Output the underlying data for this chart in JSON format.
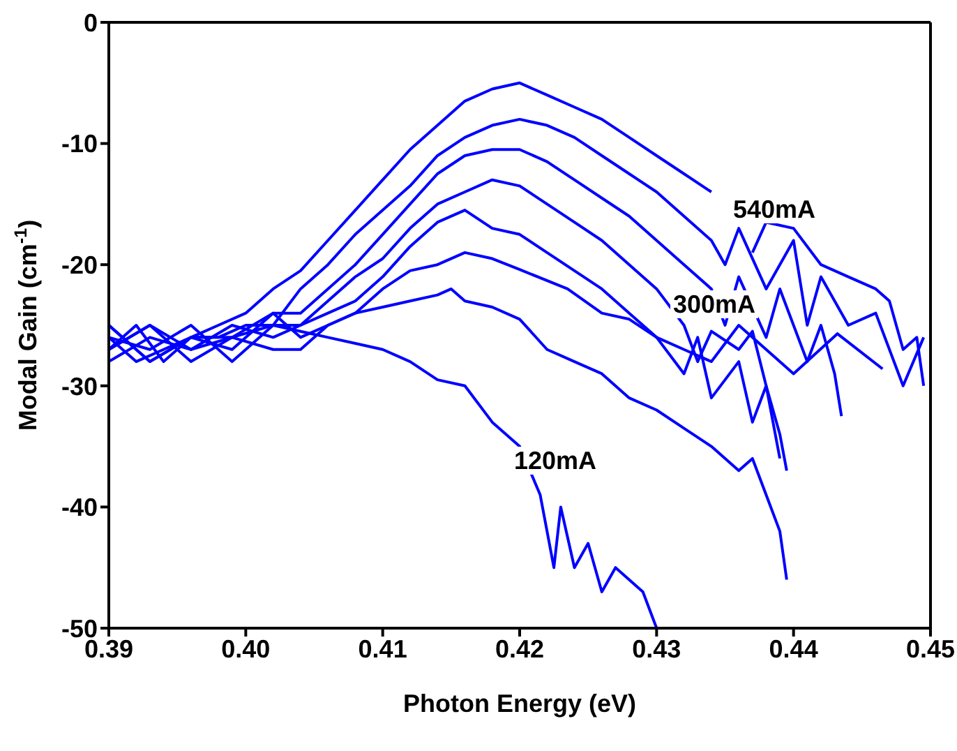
{
  "chart_data": {
    "type": "line",
    "xlabel": "Photon Energy (eV)",
    "ylabel": "Modal Gain (cm$^{-1}$)",
    "xlim": [
      0.39,
      0.45
    ],
    "xticks": [
      {
        "value": 0.39,
        "label": "0.39"
      },
      {
        "value": 0.4,
        "label": "0.40"
      },
      {
        "value": 0.41,
        "label": "0.41"
      },
      {
        "value": 0.42,
        "label": "0.42"
      },
      {
        "value": 0.43,
        "label": "0.43"
      },
      {
        "value": 0.44,
        "label": "0.44"
      },
      {
        "value": 0.45,
        "label": "0.45"
      }
    ],
    "ylim": [
      -50,
      0
    ],
    "yticks": [
      -50,
      -40,
      -30,
      -20,
      -10,
      0
    ],
    "grid": false,
    "legend": false,
    "marker": "none",
    "line_style": "solid",
    "series": [
      {
        "color": "#0000ff",
        "x": [
          0.39,
          0.392,
          0.394,
          0.396,
          0.398,
          0.4,
          0.402,
          0.404,
          0.406,
          0.408,
          0.41,
          0.412,
          0.414,
          0.416,
          0.418,
          0.42,
          0.422,
          0.424,
          0.426,
          0.428,
          0.43,
          0.432,
          0.434,
          0.436,
          0.437,
          0.438,
          0.44,
          0.442,
          0.444,
          0.446,
          0.447,
          0.448,
          0.449,
          0.4495
        ],
        "values": [
          -26,
          -28,
          -27,
          -26,
          -25,
          -24,
          -22,
          -20.5,
          -18,
          -15.5,
          -13,
          -10.5,
          -8.5,
          -6.5,
          -5.5,
          -5,
          -6,
          -7,
          -8,
          -9.5,
          -11,
          -12.5,
          -14,
          null,
          -19,
          -16.5,
          -17,
          -20,
          -21,
          -22,
          -23,
          -27,
          -26,
          -30
        ]
      },
      {
        "color": "#0000ff",
        "x": [
          0.39,
          0.393,
          0.396,
          0.399,
          0.402,
          0.404,
          0.406,
          0.408,
          0.41,
          0.412,
          0.414,
          0.416,
          0.418,
          0.42,
          0.422,
          0.424,
          0.426,
          0.428,
          0.43,
          0.432,
          0.434,
          0.435,
          0.436,
          0.438,
          0.44,
          0.441,
          0.442,
          0.444,
          0.446,
          0.448,
          0.4495
        ],
        "values": [
          -27,
          -25,
          -28,
          -26,
          -25,
          -22,
          -20,
          -17.5,
          -15.5,
          -13.5,
          -11,
          -9.5,
          -8.5,
          -8,
          -8.5,
          -9.5,
          -11,
          -12.5,
          -14,
          -16,
          -18,
          -20,
          -17,
          -22,
          -18,
          -25,
          -21,
          -25,
          -24,
          -30,
          -26
        ]
      },
      {
        "color": "#0000ff",
        "x": [
          0.39,
          0.393,
          0.396,
          0.399,
          0.402,
          0.404,
          0.406,
          0.408,
          0.41,
          0.412,
          0.414,
          0.416,
          0.418,
          0.42,
          0.422,
          0.424,
          0.426,
          0.428,
          0.43,
          0.432,
          0.434,
          0.435,
          0.436,
          0.438,
          0.439,
          0.441,
          0.442,
          0.443,
          0.4435
        ],
        "values": [
          -25,
          -28,
          -26,
          -27,
          -24,
          -24,
          -22,
          -20,
          -17.5,
          -15,
          -12.5,
          -11,
          -10.5,
          -10.5,
          -11.5,
          -13,
          -14.5,
          -16,
          -18,
          -20,
          -22,
          -25,
          -21,
          -26,
          -22,
          -28,
          -25,
          -29,
          -32.5
        ]
      },
      {
        "color": "#0000ff",
        "x": [
          0.39,
          0.393,
          0.396,
          0.399,
          0.402,
          0.404,
          0.406,
          0.408,
          0.41,
          0.412,
          0.414,
          0.416,
          0.418,
          0.42,
          0.422,
          0.424,
          0.426,
          0.428,
          0.43,
          0.432,
          0.433,
          0.434,
          0.436,
          0.437,
          0.438,
          0.439,
          0.4395
        ],
        "values": [
          -28,
          -26,
          -27,
          -25,
          -26,
          -25,
          -23,
          -21,
          -19.5,
          -17,
          -15,
          -14,
          -13,
          -13.5,
          -15,
          -16.5,
          -18,
          -20,
          -22,
          -25,
          -28,
          -25.5,
          -27,
          -25.5,
          -30,
          -34,
          -37
        ]
      },
      {
        "color": "#0000ff",
        "x": [
          0.39,
          0.393,
          0.396,
          0.399,
          0.402,
          0.404,
          0.406,
          0.408,
          0.41,
          0.412,
          0.414,
          0.416,
          0.418,
          0.42,
          0.422,
          0.424,
          0.426,
          0.428,
          0.43,
          0.432,
          0.433,
          0.434,
          0.436,
          0.437,
          0.438,
          0.439
        ],
        "values": [
          -26,
          -27,
          -25,
          -28,
          -25,
          -25,
          -24,
          -23,
          -21,
          -18.5,
          -16.5,
          -15.5,
          -17,
          -17.5,
          -19,
          -20.5,
          -22,
          -24,
          -26,
          -29,
          -26,
          -31,
          -28,
          -33,
          -30,
          -36
        ]
      },
      {
        "color": "#0000ff",
        "x": [
          0.39,
          0.393,
          0.396,
          0.399,
          0.402,
          0.404,
          0.406,
          0.408,
          0.41,
          0.412,
          0.414,
          0.416,
          0.418,
          0.42,
          0.4235,
          0.426,
          0.428,
          0.43,
          0.432,
          0.434,
          0.436,
          0.438,
          0.44,
          0.4432,
          0.4465
        ],
        "values": [
          -27,
          -25,
          -27,
          -26,
          -24,
          -26,
          -25,
          -24,
          -22,
          -20.5,
          -20,
          -19,
          -19.5,
          -20.4,
          -22,
          -24,
          -24.5,
          -26,
          -27,
          -28,
          -25,
          -27,
          -29,
          -25.7,
          -28.6
        ]
      },
      {
        "color": "#0000ff",
        "x": [
          0.39,
          0.393,
          0.396,
          0.399,
          0.402,
          0.404,
          0.406,
          0.408,
          0.41,
          0.412,
          0.414,
          0.415,
          0.416,
          0.418,
          0.42,
          0.422,
          0.424,
          0.426,
          0.428,
          0.43,
          0.432,
          0.434,
          0.436,
          0.437,
          0.438,
          0.439,
          0.4395
        ],
        "values": [
          -25,
          -28,
          -26,
          -26,
          -27,
          -27,
          -25,
          -24,
          -23.5,
          -23,
          -22.5,
          -22,
          -23,
          -23.5,
          -24.5,
          -27,
          -28,
          -29,
          -31,
          -32,
          -33.5,
          -35,
          -37,
          -36,
          -39,
          -42,
          -46
        ]
      },
      {
        "color": "#0000ff",
        "x": [
          0.39,
          0.392,
          0.394,
          0.396,
          0.398,
          0.4,
          0.402,
          0.404,
          0.406,
          0.408,
          0.41,
          0.412,
          0.414,
          0.416,
          0.418,
          0.419,
          0.42,
          0.4215,
          0.4225,
          0.423,
          0.424,
          0.425,
          0.426,
          0.427,
          0.429,
          0.43
        ],
        "values": [
          -27,
          -25,
          -28,
          -26,
          -26,
          -25,
          -25,
          -25.5,
          -26,
          -26.5,
          -27,
          -28,
          -29.5,
          -30,
          -33,
          -34,
          -35,
          -39,
          -45,
          -40,
          -45,
          -43,
          -47,
          -45,
          -47,
          -50
        ]
      }
    ],
    "annotations": [
      "540mA",
      "300mA",
      "120mA"
    ]
  }
}
